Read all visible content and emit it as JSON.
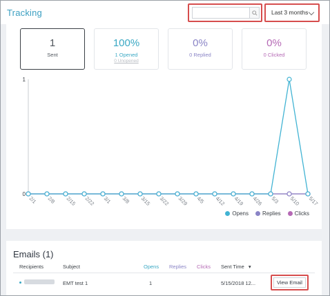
{
  "header": {
    "title": "Tracking",
    "search": {
      "placeholder": "",
      "value": ""
    },
    "date_range": {
      "selected": "Last 3 months"
    }
  },
  "stats": [
    {
      "value": "1",
      "label": "Sent",
      "sub": "",
      "color": "#50565d"
    },
    {
      "value": "100%",
      "label": "1 Opened",
      "sub": "0 Unopened",
      "color": "#3aa8c4"
    },
    {
      "value": "0%",
      "label": "0 Replied",
      "sub": "",
      "color": "#8a84c6"
    },
    {
      "value": "0%",
      "label": "0 Clicked",
      "sub": "",
      "color": "#b569b5"
    }
  ],
  "chart_data": {
    "type": "line",
    "x": [
      "2/1",
      "2/8",
      "2/15",
      "2/22",
      "3/1",
      "3/8",
      "3/15",
      "3/22",
      "3/29",
      "4/5",
      "4/12",
      "4/19",
      "4/26",
      "5/3",
      "5/10",
      "5/17"
    ],
    "series": [
      {
        "name": "Opens",
        "color": "#41b3d3",
        "values": [
          0,
          0,
          0,
          0,
          0,
          0,
          0,
          0,
          0,
          0,
          0,
          0,
          0,
          0,
          1,
          0
        ]
      },
      {
        "name": "Replies",
        "color": "#8a84c6",
        "values": [
          0,
          0,
          0,
          0,
          0,
          0,
          0,
          0,
          0,
          0,
          0,
          0,
          0,
          0,
          0,
          0
        ]
      },
      {
        "name": "Clicks",
        "color": "#b569b5",
        "values": [
          0,
          0,
          0,
          0,
          0,
          0,
          0,
          0,
          0,
          0,
          0,
          0,
          0,
          0,
          0,
          0
        ]
      }
    ],
    "ylim": [
      0,
      1
    ],
    "yticks": [
      "0",
      "1"
    ],
    "title": "",
    "xlabel": "",
    "ylabel": "",
    "legend": "bottom-right"
  },
  "emails": {
    "title": "Emails (1)",
    "columns": {
      "recipients": "Recipients",
      "subject": "Subject",
      "opens": "Opens",
      "replies": "Replies",
      "clicks": "Clicks",
      "sent_time": "Sent Time"
    },
    "sort_indicator": "▾",
    "rows": [
      {
        "subject": "EMT test 1",
        "opens": "1",
        "sent_time": "5/15/2018 12...",
        "action": "View Email"
      }
    ]
  }
}
